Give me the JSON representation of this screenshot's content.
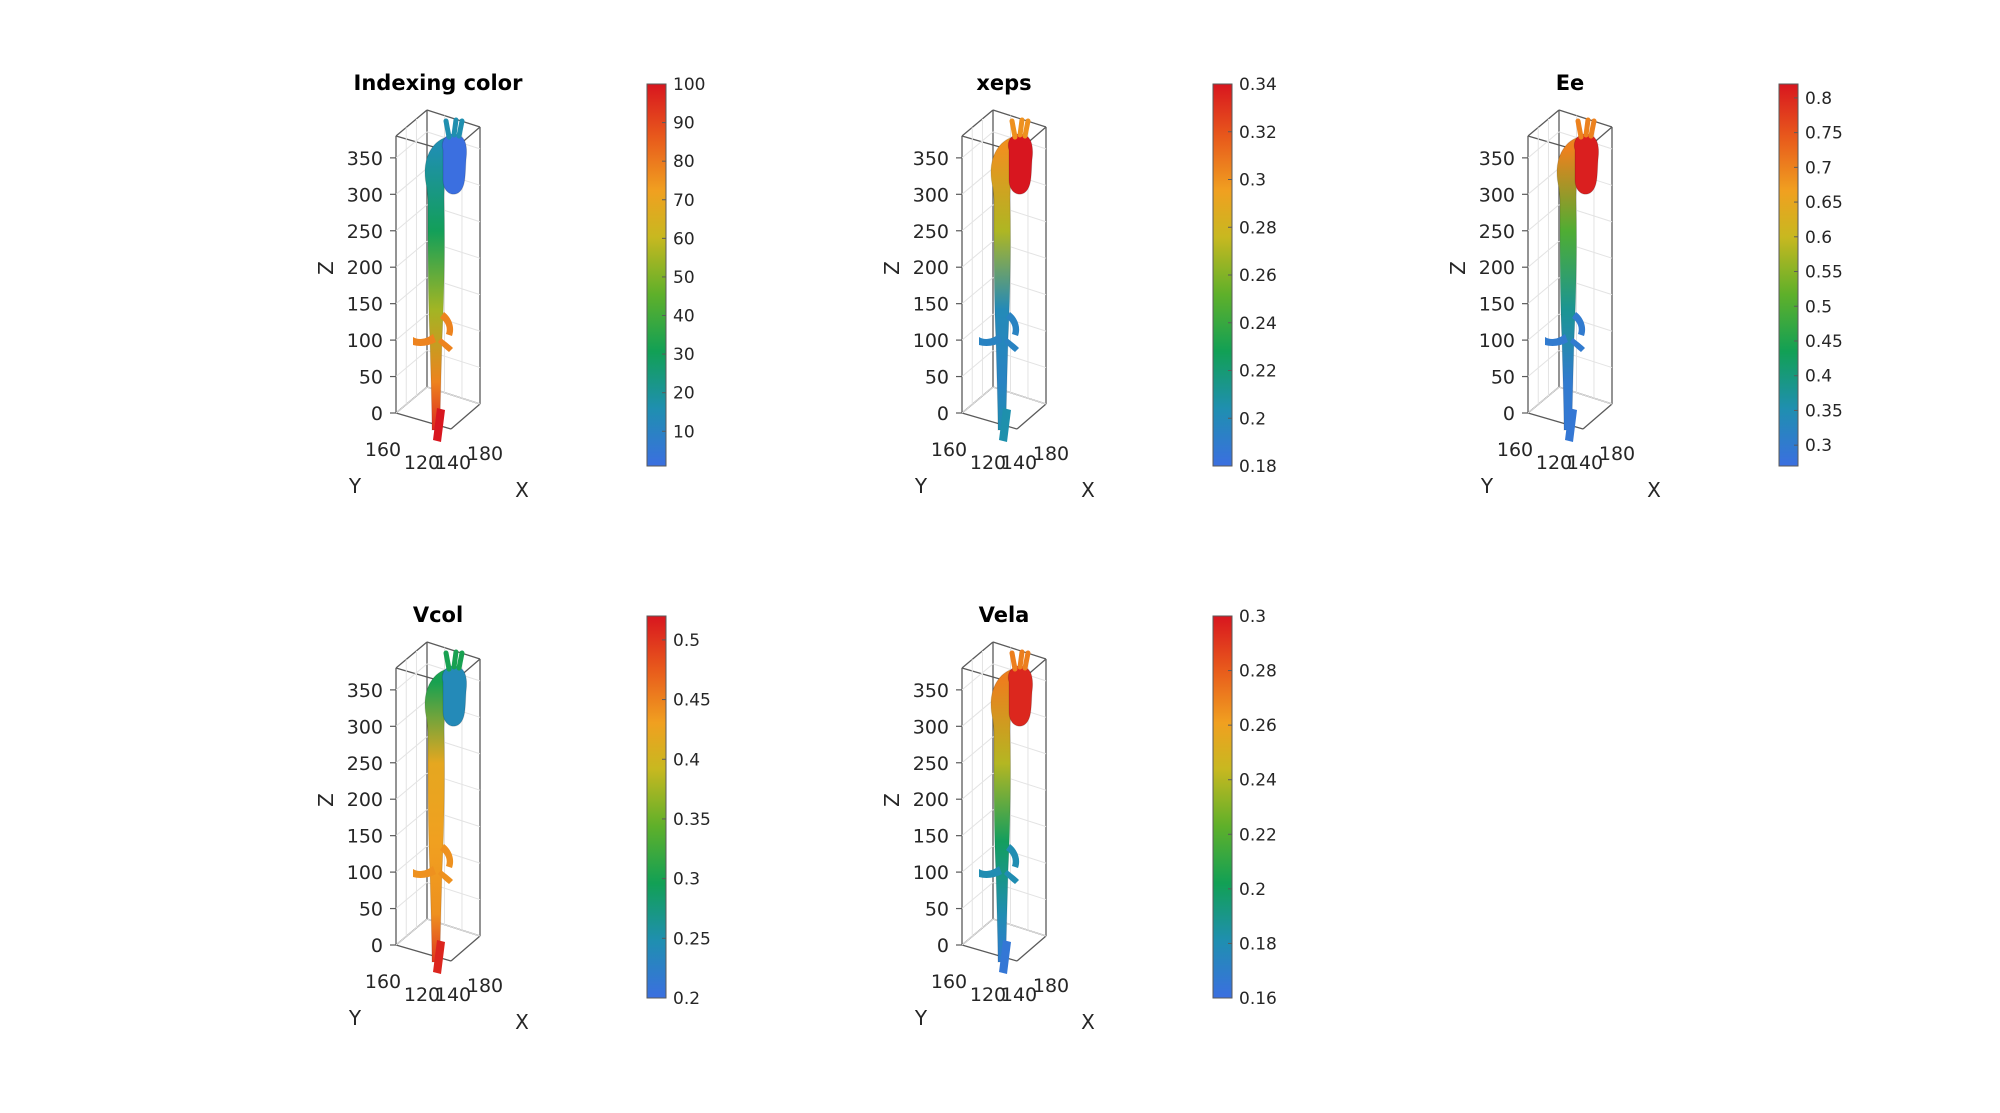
{
  "figure": {
    "panels": [
      {
        "title": "Indexing color",
        "axis_labels": {
          "x": "X",
          "y": "Y",
          "z": "Z"
        },
        "z_ticks": [
          "0",
          "50",
          "100",
          "150",
          "200",
          "250",
          "300",
          "350"
        ],
        "y_ticks": [
          "160",
          "120"
        ],
        "x_ticks": [
          "140",
          "180"
        ],
        "colorbar_ticks": [
          "10",
          "20",
          "30",
          "40",
          "50",
          "60",
          "70",
          "80",
          "90",
          "100"
        ]
      },
      {
        "title": "xeps",
        "axis_labels": {
          "x": "X",
          "y": "Y",
          "z": "Z"
        },
        "z_ticks": [
          "0",
          "50",
          "100",
          "150",
          "200",
          "250",
          "300",
          "350"
        ],
        "y_ticks": [
          "160",
          "120"
        ],
        "x_ticks": [
          "140",
          "180"
        ],
        "colorbar_ticks": [
          "0.18",
          "0.2",
          "0.22",
          "0.24",
          "0.26",
          "0.28",
          "0.3",
          "0.32",
          "0.34"
        ]
      },
      {
        "title": "Ee",
        "axis_labels": {
          "x": "X",
          "y": "Y",
          "z": "Z"
        },
        "z_ticks": [
          "0",
          "50",
          "100",
          "150",
          "200",
          "250",
          "300",
          "350"
        ],
        "y_ticks": [
          "160",
          "120"
        ],
        "x_ticks": [
          "140",
          "180"
        ],
        "colorbar_ticks": [
          "0.3",
          "0.35",
          "0.4",
          "0.45",
          "0.5",
          "0.55",
          "0.6",
          "0.65",
          "0.7",
          "0.75",
          "0.8"
        ]
      },
      {
        "title": "Vcol",
        "axis_labels": {
          "x": "X",
          "y": "Y",
          "z": "Z"
        },
        "z_ticks": [
          "0",
          "50",
          "100",
          "150",
          "200",
          "250",
          "300",
          "350"
        ],
        "y_ticks": [
          "160",
          "120"
        ],
        "x_ticks": [
          "140",
          "180"
        ],
        "colorbar_ticks": [
          "0.2",
          "0.25",
          "0.3",
          "0.35",
          "0.4",
          "0.45",
          "0.5"
        ]
      },
      {
        "title": "Vela",
        "axis_labels": {
          "x": "X",
          "y": "Y",
          "z": "Z"
        },
        "z_ticks": [
          "0",
          "50",
          "100",
          "150",
          "200",
          "250",
          "300",
          "350"
        ],
        "y_ticks": [
          "160",
          "120"
        ],
        "x_ticks": [
          "140",
          "180"
        ],
        "colorbar_ticks": [
          "0.16",
          "0.18",
          "0.2",
          "0.22",
          "0.24",
          "0.26",
          "0.28",
          "0.3"
        ]
      }
    ]
  },
  "chart_data": [
    {
      "type": "surface3d",
      "title": "Indexing color",
      "xlabel": "X",
      "ylabel": "Y",
      "zlabel": "Z",
      "zlim": [
        0,
        380
      ],
      "z_ticks": [
        0,
        50,
        100,
        150,
        200,
        250,
        300,
        350
      ],
      "y_ticks": [
        160,
        120
      ],
      "x_ticks": [
        140,
        180
      ],
      "colorbar": {
        "range": [
          1,
          100
        ],
        "ticks": [
          10,
          20,
          30,
          40,
          50,
          60,
          70,
          80,
          90,
          100
        ],
        "colormap": "turbo"
      },
      "regions": {
        "root": 1,
        "arch_top": 16,
        "aorta_upper": 30,
        "aorta_mid": 55,
        "aorta_lower": 78,
        "iliac": 100
      }
    },
    {
      "type": "surface3d",
      "title": "xeps",
      "xlabel": "X",
      "ylabel": "Y",
      "zlabel": "Z",
      "zlim": [
        0,
        380
      ],
      "z_ticks": [
        0,
        50,
        100,
        150,
        200,
        250,
        300,
        350
      ],
      "y_ticks": [
        160,
        120
      ],
      "x_ticks": [
        140,
        180
      ],
      "colorbar": {
        "range": [
          0.18,
          0.34
        ],
        "ticks": [
          0.18,
          0.2,
          0.22,
          0.24,
          0.26,
          0.28,
          0.3,
          0.32,
          0.34
        ],
        "colormap": "turbo"
      },
      "regions": {
        "root": 0.34,
        "arch_top": 0.3,
        "aorta_upper": 0.27,
        "aorta_mid": 0.2,
        "aorta_lower": 0.195,
        "iliac": 0.205
      }
    },
    {
      "type": "surface3d",
      "title": "Ee",
      "xlabel": "X",
      "ylabel": "Y",
      "zlabel": "Z",
      "zlim": [
        0,
        380
      ],
      "z_ticks": [
        0,
        50,
        100,
        150,
        200,
        250,
        300,
        350
      ],
      "y_ticks": [
        160,
        120
      ],
      "x_ticks": [
        140,
        180
      ],
      "colorbar": {
        "range": [
          0.27,
          0.82
        ],
        "ticks": [
          0.3,
          0.35,
          0.4,
          0.45,
          0.5,
          0.55,
          0.6,
          0.65,
          0.7,
          0.75,
          0.8
        ],
        "colormap": "turbo"
      },
      "regions": {
        "root": 0.81,
        "arch_top": 0.7,
        "aorta_upper": 0.5,
        "aorta_mid": 0.38,
        "aorta_lower": 0.3,
        "iliac": 0.29
      }
    },
    {
      "type": "surface3d",
      "title": "Vcol",
      "xlabel": "X",
      "ylabel": "Y",
      "zlabel": "Z",
      "zlim": [
        0,
        380
      ],
      "z_ticks": [
        0,
        50,
        100,
        150,
        200,
        250,
        300,
        350
      ],
      "y_ticks": [
        160,
        120
      ],
      "x_ticks": [
        140,
        180
      ],
      "colorbar": {
        "range": [
          0.2,
          0.52
        ],
        "ticks": [
          0.2,
          0.25,
          0.3,
          0.35,
          0.4,
          0.45,
          0.5
        ],
        "colormap": "turbo"
      },
      "regions": {
        "root": 0.24,
        "arch_top": 0.3,
        "aorta_upper": 0.42,
        "aorta_mid": 0.43,
        "aorta_lower": 0.44,
        "iliac": 0.51
      }
    },
    {
      "type": "surface3d",
      "title": "Vela",
      "xlabel": "X",
      "ylabel": "Y",
      "zlabel": "Z",
      "zlim": [
        0,
        380
      ],
      "z_ticks": [
        0,
        50,
        100,
        150,
        200,
        250,
        300,
        350
      ],
      "y_ticks": [
        160,
        120
      ],
      "x_ticks": [
        140,
        180
      ],
      "colorbar": {
        "range": [
          0.16,
          0.3
        ],
        "ticks": [
          0.16,
          0.18,
          0.2,
          0.22,
          0.24,
          0.26,
          0.28,
          0.3
        ],
        "colormap": "turbo"
      },
      "regions": {
        "root": 0.295,
        "arch_top": 0.27,
        "aorta_upper": 0.24,
        "aorta_mid": 0.2,
        "aorta_lower": 0.18,
        "iliac": 0.165
      }
    }
  ]
}
